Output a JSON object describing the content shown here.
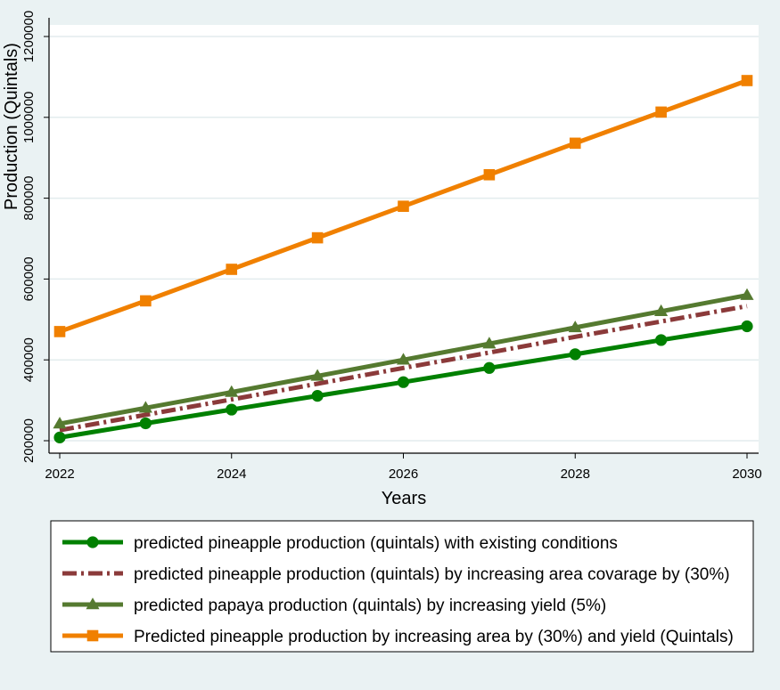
{
  "chart_data": {
    "type": "line",
    "title": "",
    "xlabel": "Years",
    "ylabel": "Production (Quintals)",
    "x": [
      2022,
      2023,
      2024,
      2025,
      2026,
      2027,
      2028,
      2029,
      2030
    ],
    "xticks": [
      2022,
      2024,
      2026,
      2028,
      2030
    ],
    "yticks": [
      200000,
      400000,
      600000,
      800000,
      1000000,
      1200000
    ],
    "xlim": [
      2022,
      2030
    ],
    "ylim": [
      200000,
      1200000
    ],
    "grid": true,
    "legend_position": "bottom",
    "series": [
      {
        "name": "predicted pineapple production (quintals) with existing conditions",
        "values": [
          208000,
          243000,
          277000,
          311000,
          345000,
          380000,
          414000,
          449000,
          483000
        ],
        "color": "#008000",
        "dash": "solid",
        "marker": "circle"
      },
      {
        "name": "predicted pineapple production (quintals) by increasing area covarage by (30%)",
        "values": [
          226000,
          264000,
          302000,
          341000,
          380000,
          418000,
          457000,
          495000,
          533000
        ],
        "color": "#8b3a3a",
        "dash": "dash-dot",
        "marker": "none"
      },
      {
        "name": "predicted papaya production (quintals) by increasing yield (5%)",
        "values": [
          242000,
          281000,
          320000,
          360000,
          400000,
          440000,
          480000,
          520000,
          560000
        ],
        "color": "#557a30",
        "dash": "solid",
        "marker": "triangle"
      },
      {
        "name": "Predicted pineapple production by increasing area  by (30%) and yield (Quintals)",
        "values": [
          470000,
          546000,
          624000,
          702000,
          780000,
          858000,
          936000,
          1013000,
          1091000
        ],
        "color": "#f08000",
        "dash": "solid",
        "marker": "square"
      }
    ]
  }
}
